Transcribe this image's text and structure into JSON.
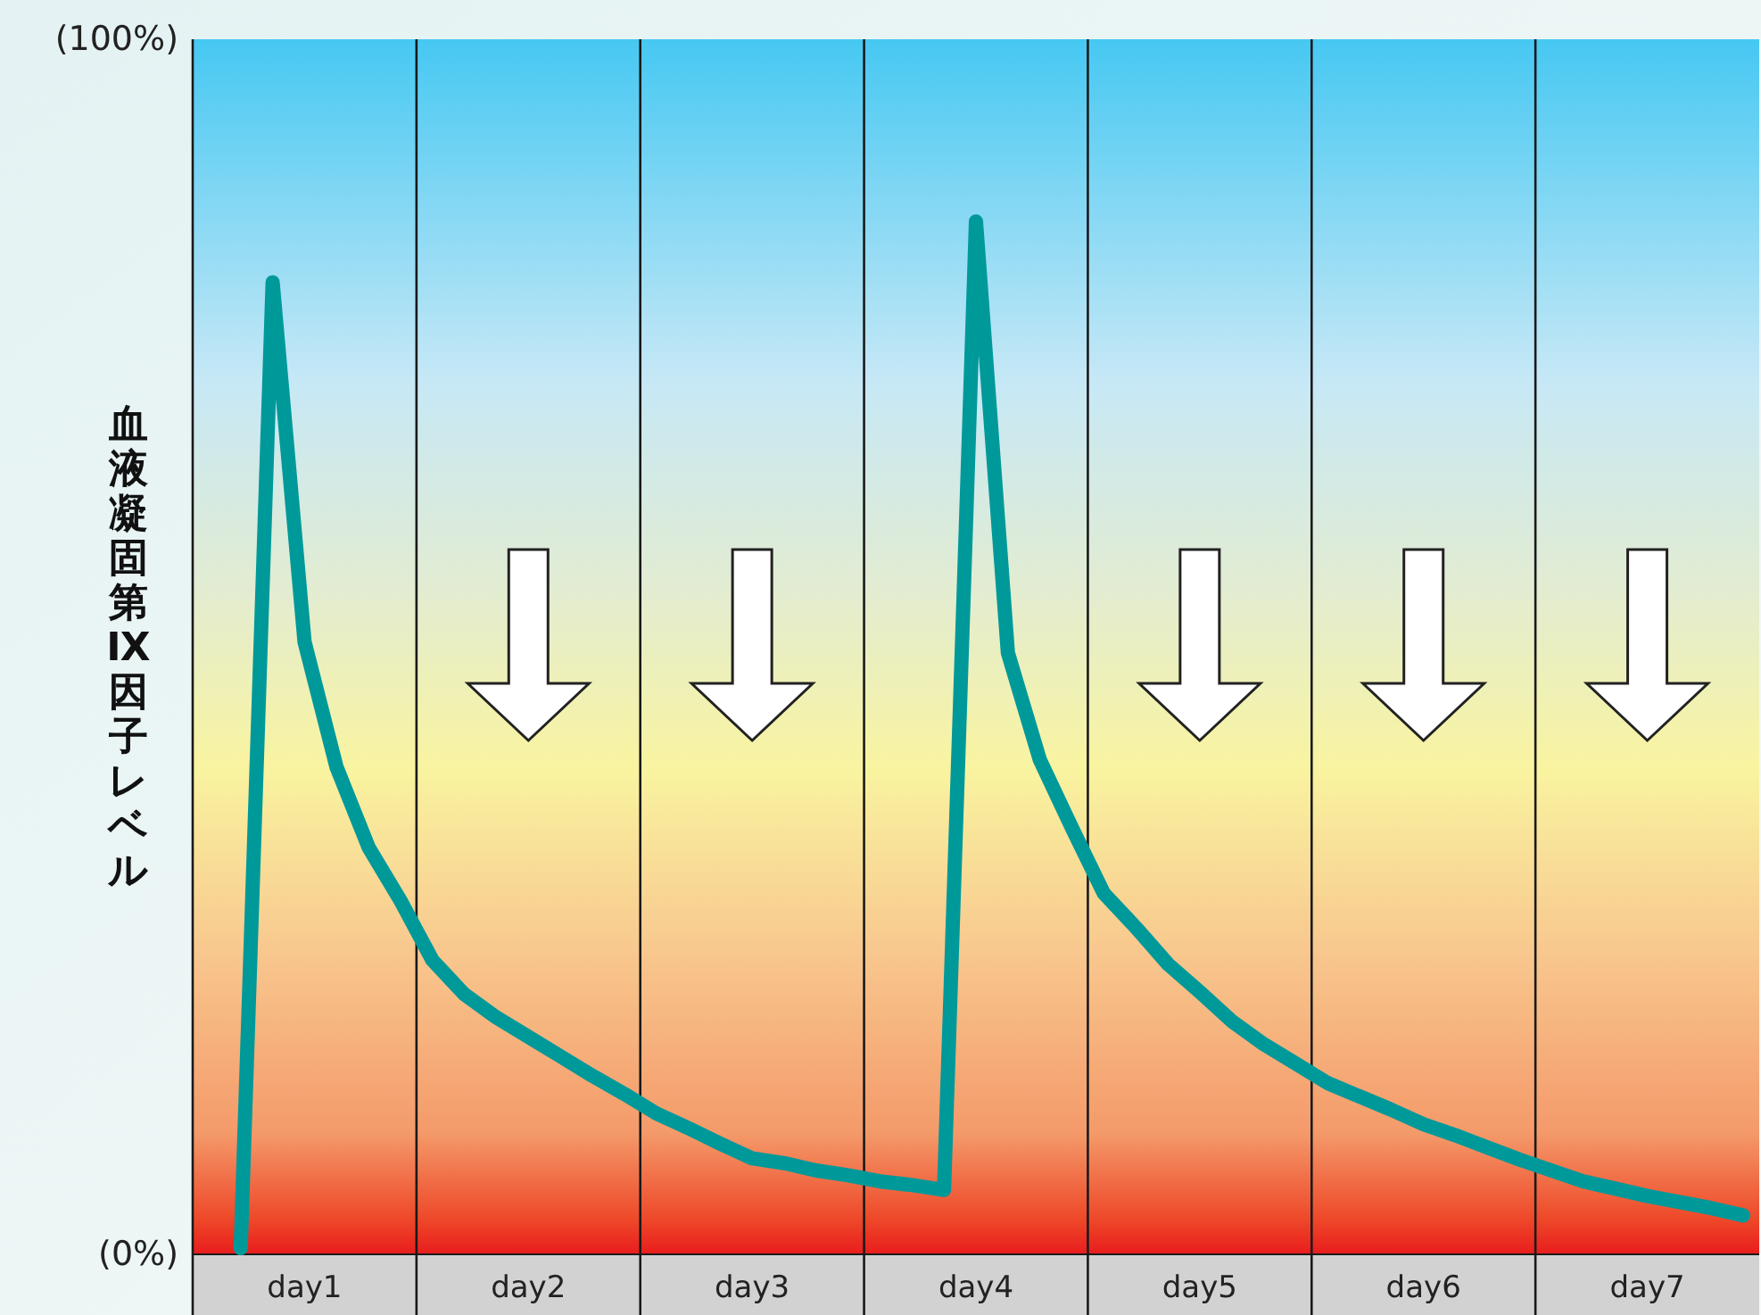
{
  "chart_data": {
    "type": "line",
    "ylabel": "血液凝固第Ⅸ因子レベル",
    "categories": [
      null,
      null,
      null,
      "day1",
      null,
      null,
      null,
      null,
      null,
      null,
      "day2",
      null,
      null,
      null,
      null,
      null,
      null,
      "day3",
      null,
      null,
      null,
      null,
      null,
      null,
      "day4",
      null,
      null,
      null,
      null,
      null,
      null,
      "day5",
      null,
      null,
      null,
      null,
      null,
      null,
      "day6",
      null,
      null,
      null,
      null,
      null,
      null,
      "day7",
      null,
      null,
      null
    ],
    "series": [
      {
        "color": "#00999a",
        "values": [
          null,
          0.5,
          80,
          50.4,
          40.1,
          33.5,
          29.1,
          24.2,
          21.4,
          19.5,
          17.9,
          16.3,
          14.7,
          13.2,
          11.6,
          10.4,
          9.1,
          7.9,
          7.5,
          6.9,
          6.5,
          6.0,
          5.7,
          5.3,
          85,
          49.5,
          40.7,
          35.1,
          29.7,
          26.9,
          23.9,
          21.6,
          19.2,
          17.3,
          15.7,
          14.1,
          13.0,
          11.9,
          10.7,
          9.8,
          8.8,
          7.8,
          6.9,
          6.0,
          5.4,
          4.8,
          4.3,
          3.8,
          3.2
        ]
      }
    ],
    "ylim": [
      0,
      100
    ],
    "yticks": [
      {
        "value": 0,
        "label": "(0%)"
      },
      {
        "value": 100,
        "label": "(100%)"
      }
    ],
    "marker": "none",
    "line_style": "solid"
  }
}
